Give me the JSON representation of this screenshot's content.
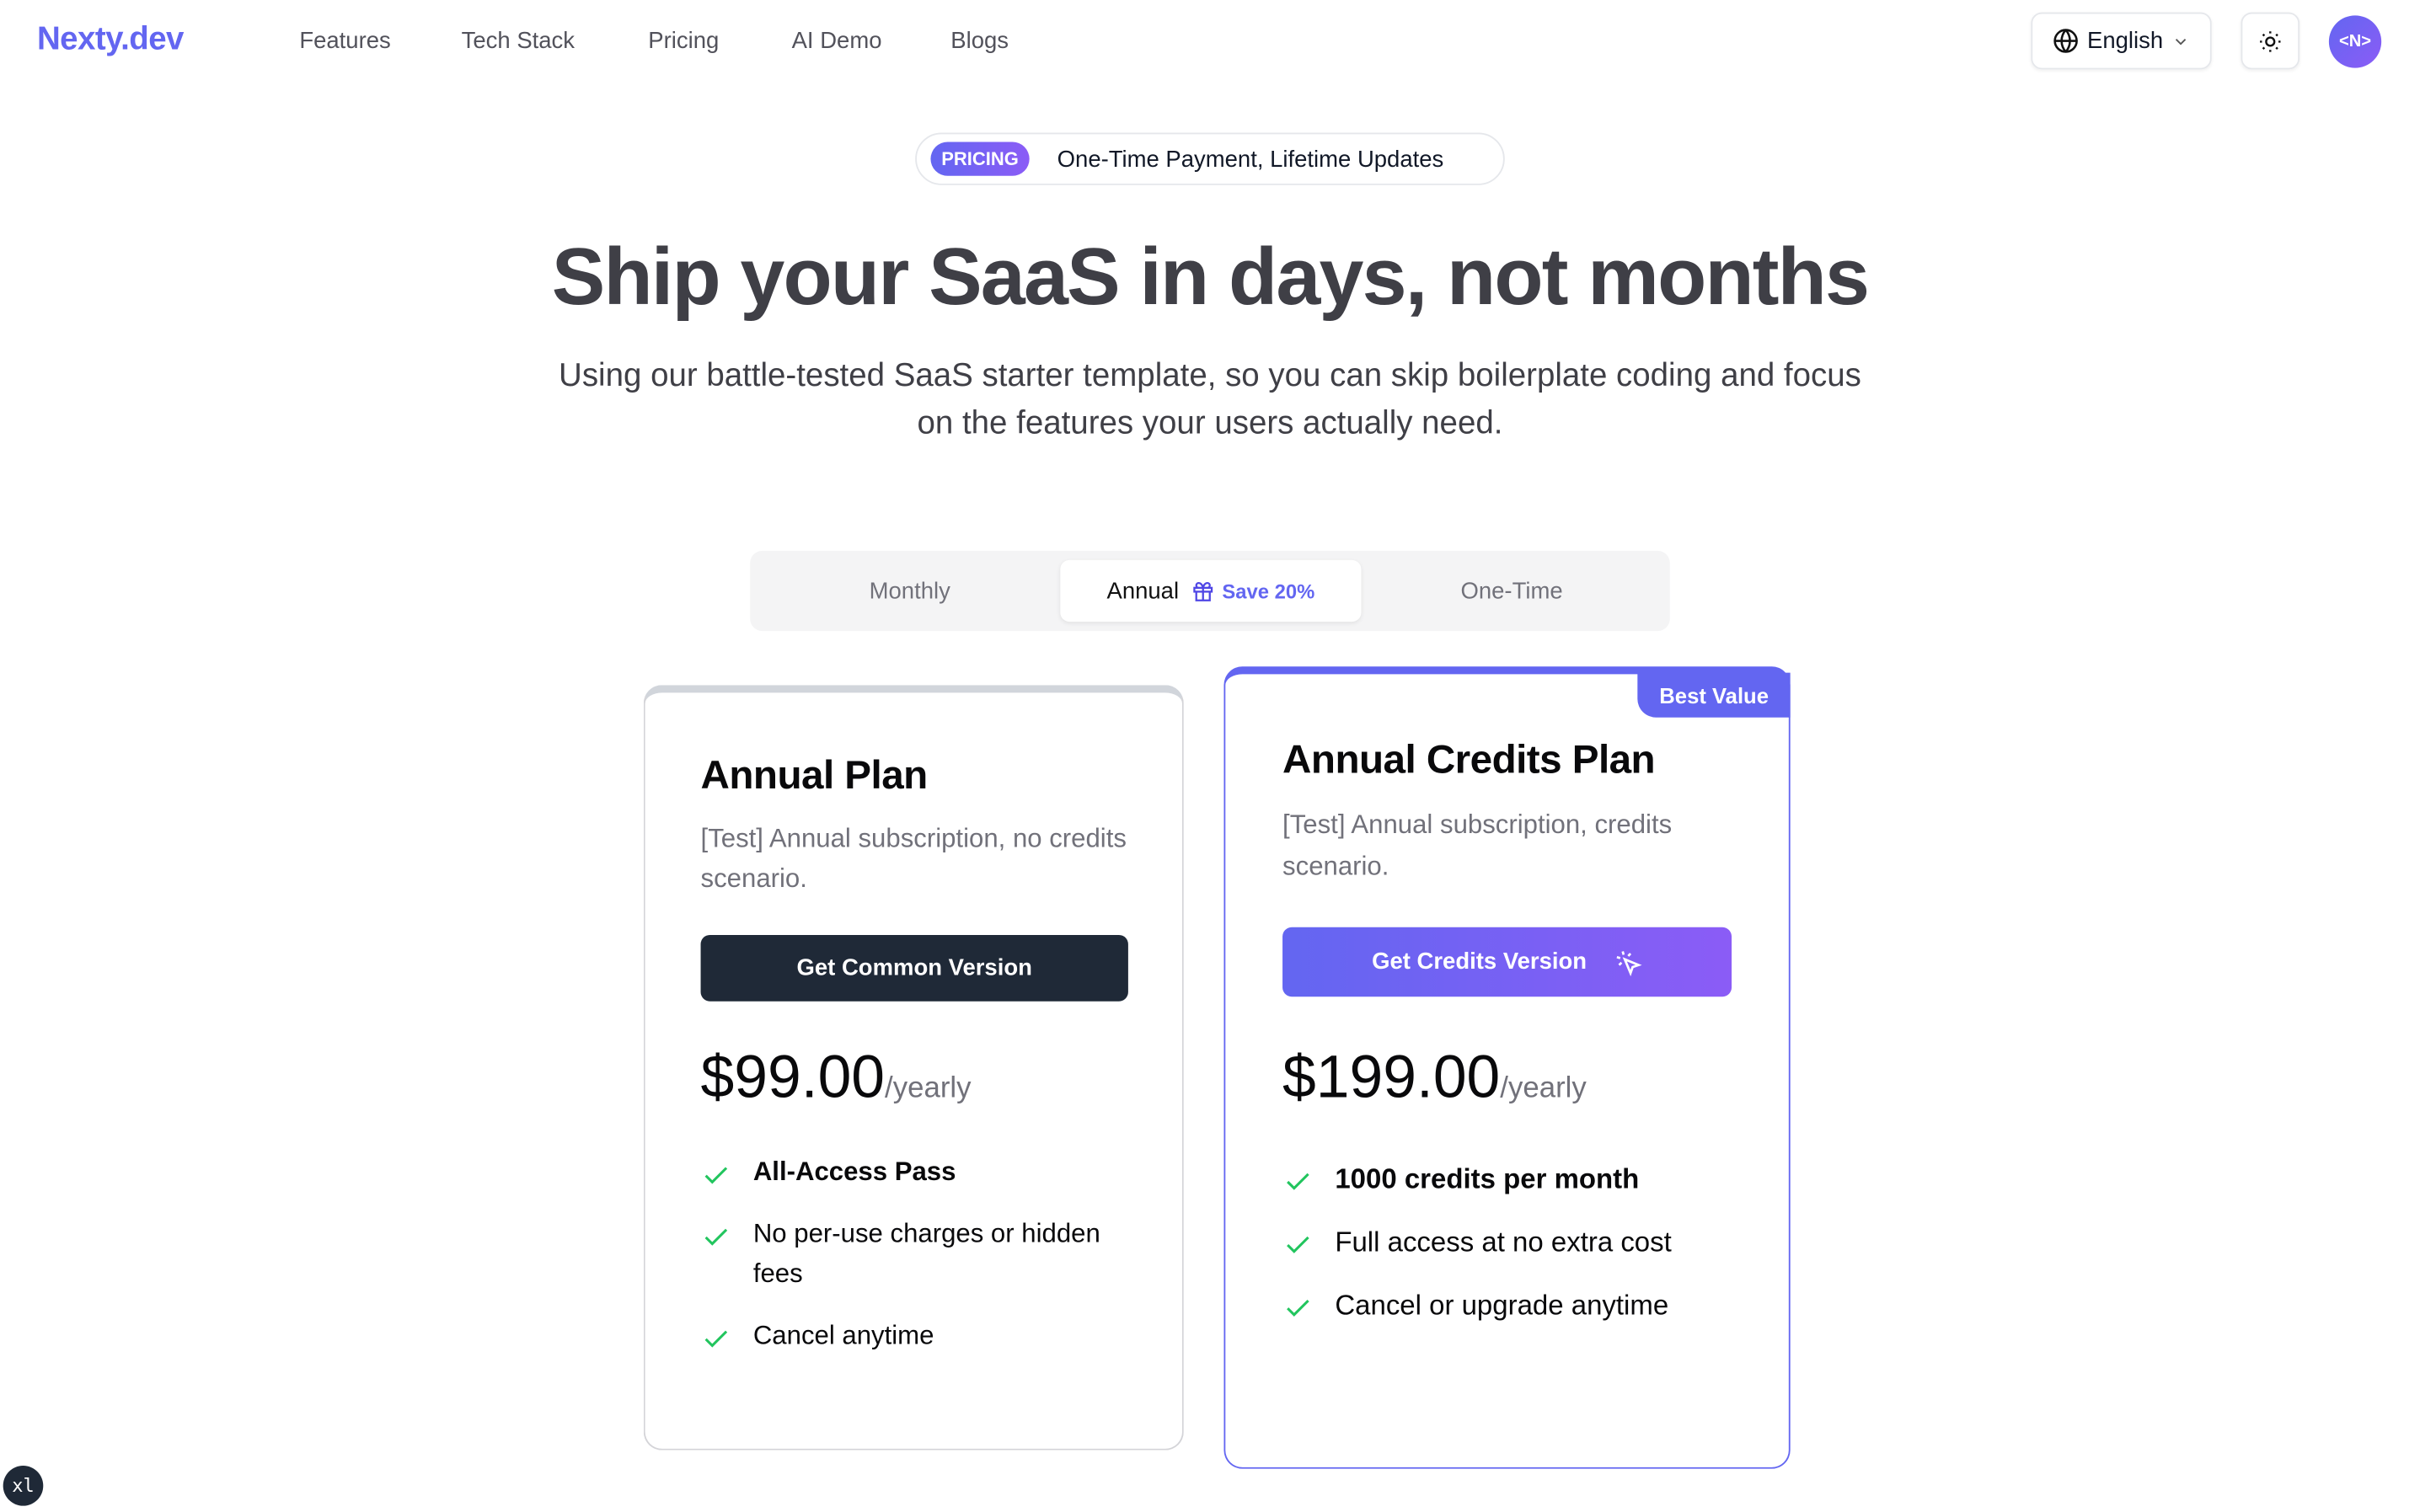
{
  "header": {
    "logo": "Nexty.dev",
    "nav": [
      "Features",
      "Tech Stack",
      "Pricing",
      "AI Demo",
      "Blogs"
    ],
    "language": "English",
    "avatar": "<N>"
  },
  "hero": {
    "pill_tag": "PRICING",
    "pill_text": "One-Time Payment, Lifetime Updates",
    "title": "Ship your SaaS in days, not months",
    "subtitle": "Using our battle-tested SaaS starter template, so you can skip boilerplate coding and focus on the features your users actually need."
  },
  "tabs": {
    "items": [
      "Monthly",
      "Annual",
      "One-Time"
    ],
    "active": "Annual",
    "save_label": "Save 20%"
  },
  "plans": [
    {
      "title": "Annual Plan",
      "description": "[Test] Annual subscription, no credits scenario.",
      "button": "Get Common Version",
      "price": "$99.00",
      "period": "/yearly",
      "features": [
        "All-Access Pass",
        "No per-use charges or hidden fees",
        "Cancel anytime"
      ]
    },
    {
      "badge": "Best Value",
      "title": "Annual Credits Plan",
      "description": "[Test] Annual subscription, credits scenario.",
      "button": "Get Credits Version",
      "price": "$199.00",
      "period": "/yearly",
      "features": [
        "1000 credits per month",
        "Full access at no extra cost",
        "Cancel or upgrade anytime"
      ]
    }
  ],
  "corner_badge": "xl",
  "colors": {
    "accent": "#6366f1",
    "accent2": "#8b5cf6",
    "check": "#22c55e",
    "dark_button": "#1f2937"
  }
}
